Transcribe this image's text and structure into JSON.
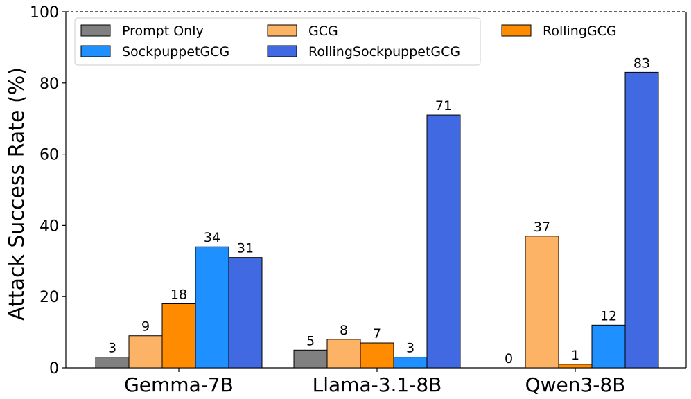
{
  "chart_data": {
    "type": "bar",
    "title": "",
    "xlabel": "",
    "ylabel": "Attack Success Rate (%)",
    "ylim": [
      0,
      100
    ],
    "yticks": [
      0,
      20,
      40,
      60,
      80,
      100
    ],
    "categories": [
      "Gemma-7B",
      "Llama-3.1-8B",
      "Qwen3-8B"
    ],
    "series": [
      {
        "name": "Prompt Only",
        "color": "#808080",
        "values": [
          3,
          5,
          0
        ]
      },
      {
        "name": "GCG",
        "color": "#FDB366",
        "values": [
          9,
          8,
          37
        ]
      },
      {
        "name": "RollingGCG",
        "color": "#FF8C00",
        "values": [
          18,
          7,
          1
        ]
      },
      {
        "name": "SockpuppetGCG",
        "color": "#1E90FF",
        "values": [
          34,
          3,
          12
        ]
      },
      {
        "name": "RollingSockpuppetGCG",
        "color": "#4169E1",
        "values": [
          31,
          71,
          83
        ]
      }
    ],
    "legend_position": "top-left",
    "top_line_style": "dashed"
  }
}
